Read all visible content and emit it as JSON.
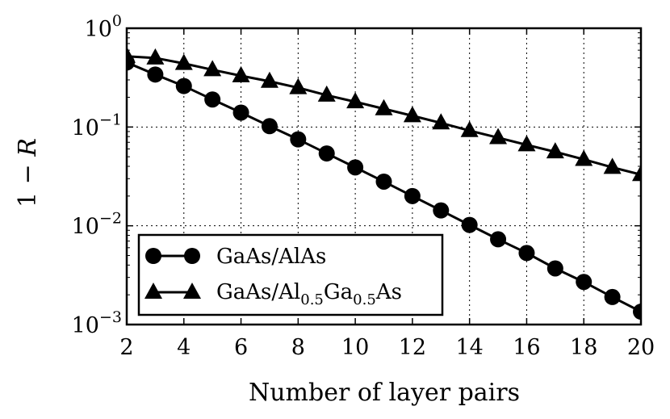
{
  "chart_data": {
    "type": "line",
    "xlabel": "Number of layer pairs",
    "ylabel": "1 − R",
    "xlim": [
      2,
      20
    ],
    "ylim": [
      0.001,
      1
    ],
    "yscale": "log",
    "grid": true,
    "x_ticks": [
      2,
      4,
      6,
      8,
      10,
      12,
      14,
      16,
      18,
      20
    ],
    "y_ticks": [
      {
        "value": 0.001,
        "base": "10",
        "exp": "−3"
      },
      {
        "value": 0.01,
        "base": "10",
        "exp": "−2"
      },
      {
        "value": 0.1,
        "base": "10",
        "exp": "−1"
      },
      {
        "value": 1,
        "base": "10",
        "exp": "0"
      }
    ],
    "legend_position": "bottom-left",
    "series": [
      {
        "name": "GaAs/AlAs",
        "legend_label": {
          "text1": "GaAs/AlAs"
        },
        "marker": "circle",
        "x": [
          2,
          3,
          4,
          5,
          6,
          7,
          8,
          9,
          10,
          11,
          12,
          13,
          14,
          15,
          16,
          17,
          18,
          19,
          20
        ],
        "y": [
          0.45,
          0.34,
          0.26,
          0.19,
          0.14,
          0.102,
          0.075,
          0.054,
          0.039,
          0.028,
          0.02,
          0.0143,
          0.0102,
          0.0073,
          0.0053,
          0.0037,
          0.0027,
          0.0019,
          0.00135
        ]
      },
      {
        "name": "GaAs/Al0.5Ga0.5As",
        "legend_label": {
          "text1": "GaAs/Al",
          "sub1": "0.5",
          "text2": "Ga",
          "sub2": "0.5",
          "text3": "As"
        },
        "marker": "triangle",
        "x": [
          2,
          3,
          4,
          5,
          6,
          7,
          8,
          9,
          10,
          11,
          12,
          13,
          14,
          15,
          16,
          17,
          18,
          19,
          20
        ],
        "y": [
          0.52,
          0.5,
          0.44,
          0.38,
          0.33,
          0.29,
          0.25,
          0.21,
          0.18,
          0.153,
          0.13,
          0.11,
          0.092,
          0.078,
          0.066,
          0.056,
          0.047,
          0.039,
          0.033
        ]
      }
    ]
  }
}
